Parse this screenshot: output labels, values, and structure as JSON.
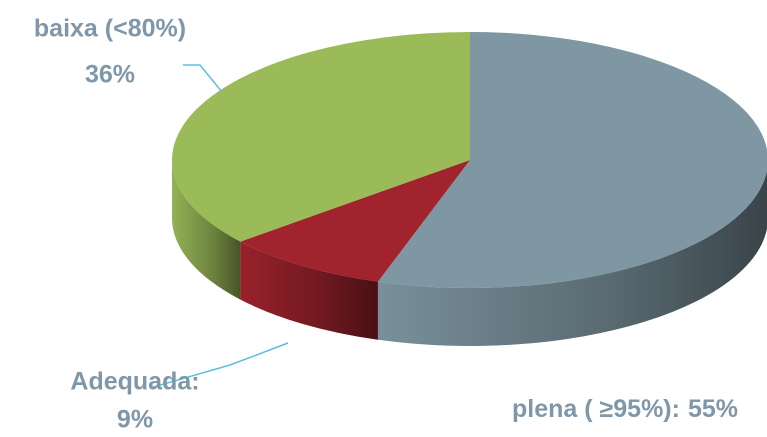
{
  "chart_data": {
    "type": "pie",
    "categories": [
      "plena ( ≥95%):",
      "Adequada:",
      "baixa (<80%)"
    ],
    "values": [
      55,
      9,
      36
    ],
    "value_labels": [
      "55%",
      "9%",
      "36%"
    ],
    "colors": [
      "#7f97a2",
      "#a0232d",
      "#9bbb59"
    ]
  }
}
